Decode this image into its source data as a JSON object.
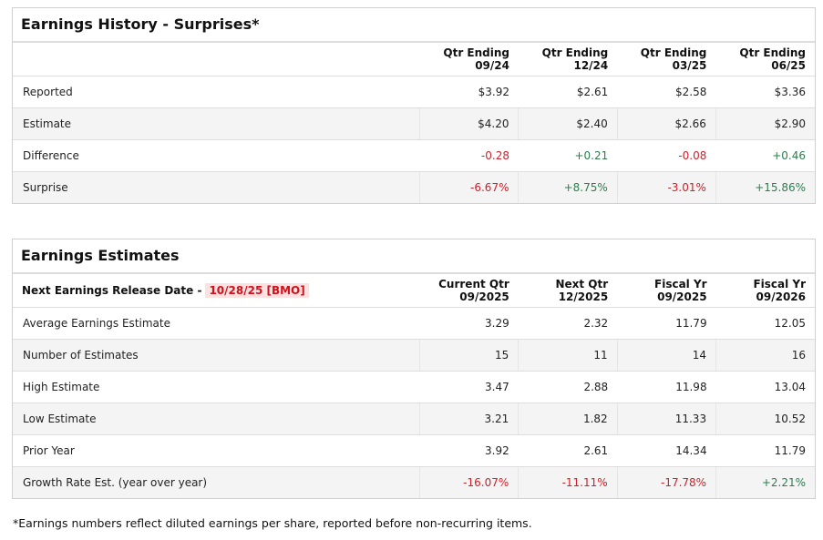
{
  "history": {
    "title": "Earnings History - Surprises*",
    "columns": [
      {
        "l1": "Qtr Ending",
        "l2": "09/24"
      },
      {
        "l1": "Qtr Ending",
        "l2": "12/24"
      },
      {
        "l1": "Qtr Ending",
        "l2": "03/25"
      },
      {
        "l1": "Qtr Ending",
        "l2": "06/25"
      }
    ],
    "rows": [
      {
        "label": "Reported",
        "values": [
          "$3.92",
          "$2.61",
          "$2.58",
          "$3.36"
        ]
      },
      {
        "label": "Estimate",
        "values": [
          "$4.20",
          "$2.40",
          "$2.66",
          "$2.90"
        ]
      },
      {
        "label": "Difference",
        "values": [
          "-0.28",
          "+0.21",
          "-0.08",
          "+0.46"
        ]
      },
      {
        "label": "Surprise",
        "values": [
          "-6.67%",
          "+8.75%",
          "-3.01%",
          "+15.86%"
        ]
      }
    ]
  },
  "estimates": {
    "title": "Earnings Estimates",
    "next_release_label": "Next Earnings Release Date -",
    "next_release_date": "10/28/25 [BMO]",
    "columns": [
      {
        "l1": "Current Qtr",
        "l2": "09/2025"
      },
      {
        "l1": "Next Qtr",
        "l2": "12/2025"
      },
      {
        "l1": "Fiscal Yr",
        "l2": "09/2025"
      },
      {
        "l1": "Fiscal Yr",
        "l2": "09/2026"
      }
    ],
    "rows": [
      {
        "label": "Average Earnings Estimate",
        "values": [
          "3.29",
          "2.32",
          "11.79",
          "12.05"
        ]
      },
      {
        "label": "Number of Estimates",
        "values": [
          "15",
          "11",
          "14",
          "16"
        ]
      },
      {
        "label": "High Estimate",
        "values": [
          "3.47",
          "2.88",
          "11.98",
          "13.04"
        ]
      },
      {
        "label": "Low Estimate",
        "values": [
          "3.21",
          "1.82",
          "11.33",
          "10.52"
        ]
      },
      {
        "label": "Prior Year",
        "values": [
          "3.92",
          "2.61",
          "14.34",
          "11.79"
        ]
      },
      {
        "label": "Growth Rate Est. (year over year)",
        "values": [
          "-16.07%",
          "-11.11%",
          "-17.78%",
          "+2.21%"
        ]
      }
    ]
  },
  "footnote": "*Earnings numbers reflect diluted earnings per share, reported before non-recurring items.",
  "colors": {
    "negative": "#d0202a",
    "positive": "#2e7d4f",
    "badge_bg": "#fde0e0"
  }
}
